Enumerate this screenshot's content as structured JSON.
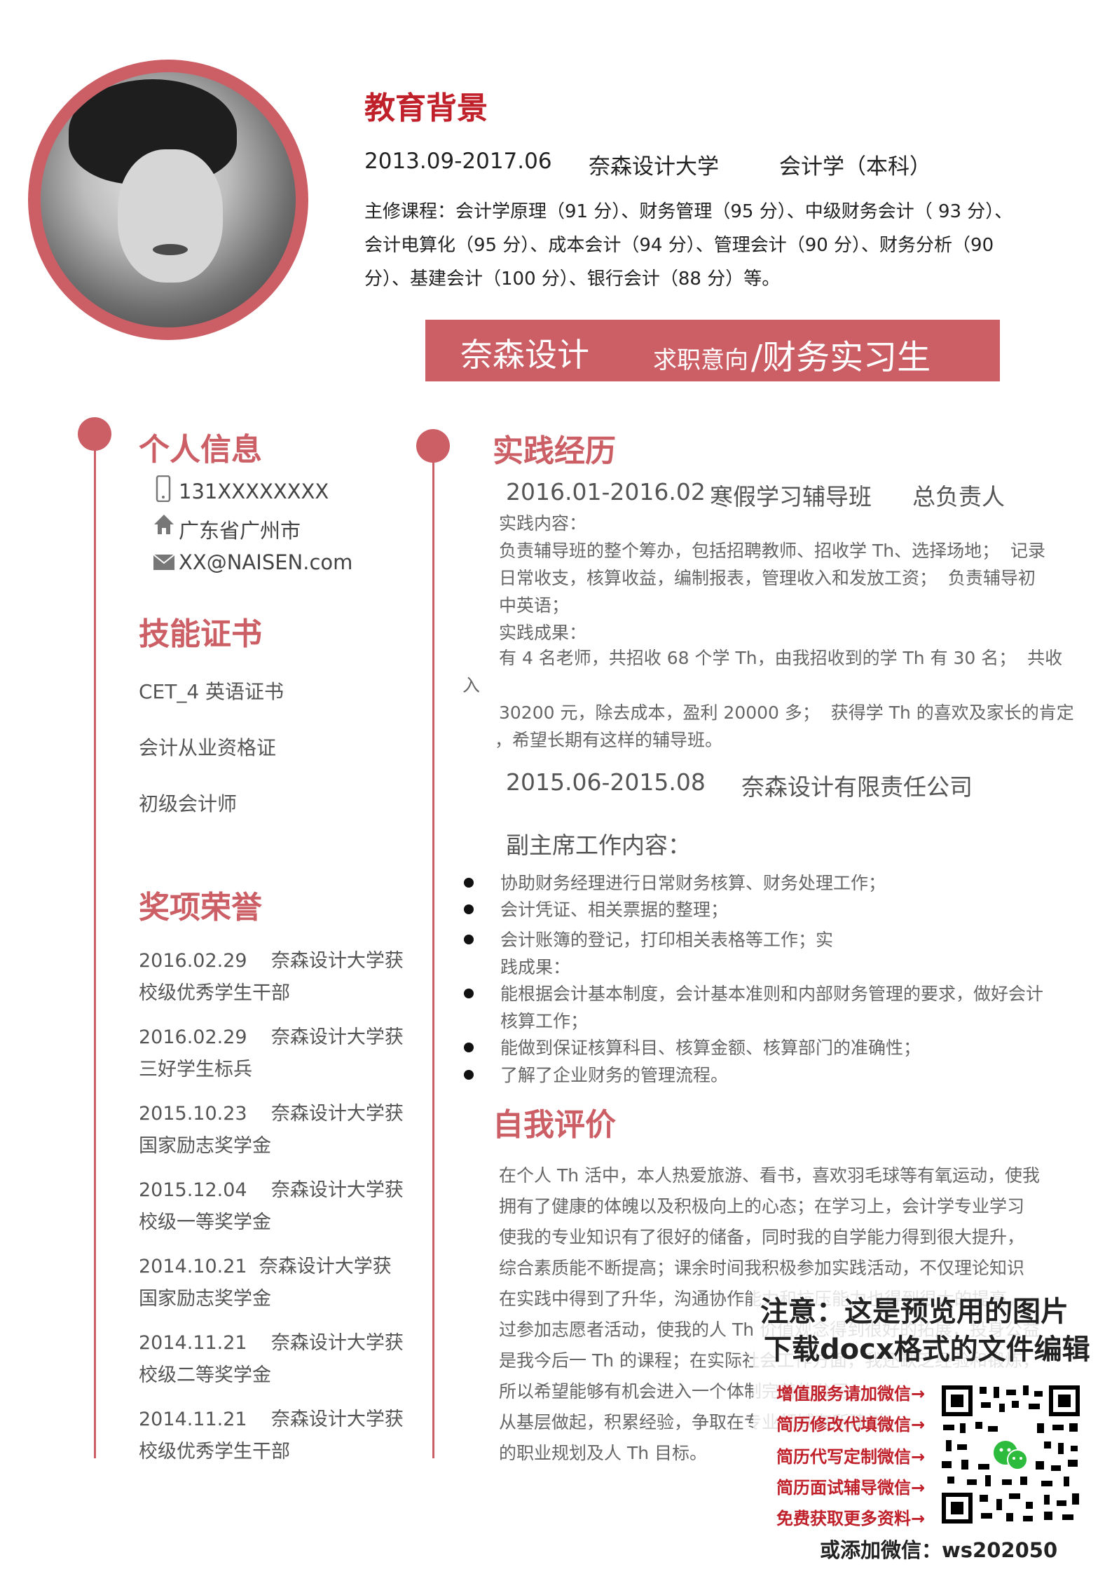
{
  "education": {
    "heading": "教育背景",
    "period": "2013.09-2017.06",
    "school": "奈森设计大学",
    "major": "会计学（本科）",
    "courses_lines": [
      "主修课程：会计学原理（91 分）、财务管理（95 分）、中级财务会计（ 93 分）、",
      "会计电算化（95 分）、成本会计（94 分）、管理会计（90 分）、财务分析（90",
      "分）、基建会计（100 分）、银行会计（88 分）等。"
    ]
  },
  "banner": {
    "name": "奈森设计",
    "intent_label": "求职意向",
    "intent_value": "/财务实习生"
  },
  "personal": {
    "heading": "个人信息",
    "phone": "131XXXXXXXX",
    "address": "广东省广州市",
    "email": "XX@NAISEN.com",
    "icons": [
      "phone-icon",
      "home-icon",
      "mail-icon"
    ]
  },
  "skills": {
    "heading": "技能证书",
    "items": [
      "CET_4 英语证书",
      "会计从业资格证",
      "初级会计师"
    ]
  },
  "awards": {
    "heading": "奖项荣誉",
    "items": [
      {
        "line1": "2016.02.29    奈森设计大学获",
        "line2": "校级优秀学生干部"
      },
      {
        "line1": "2016.02.29    奈森设计大学获",
        "line2": "三好学生标兵"
      },
      {
        "line1": "2015.10.23    奈森设计大学获",
        "line2": "国家励志奖学金"
      },
      {
        "line1": "2015.12.04    奈森设计大学获",
        "line2": "校级一等奖学金"
      },
      {
        "line1": "2014.10.21  奈森设计大学获",
        "line2": "国家励志奖学金"
      },
      {
        "line1": "2014.11.21    奈森设计大学获",
        "line2": "校级二等奖学金"
      },
      {
        "line1": "2014.11.21    奈森设计大学获",
        "line2": "校级优秀学生干部"
      }
    ]
  },
  "practice": {
    "heading": "实践经历",
    "job1": {
      "period": "2016.01-2016.02",
      "org": "寒假学习辅导班",
      "role": "总负责人",
      "content_label": "实践内容：",
      "content_lines": [
        "负责辅导班的整个筹办，包括招聘教师、招收学 Th、选择场地；  记录",
        "日常收支，核算收益，编制报表，管理收入和发放工资；  负责辅导初",
        "中英语；"
      ],
      "result_label": "实践成果：",
      "result_lines": [
        "有 4 名老师，共招收 68 个学 Th，由我招收到的学 Th 有 30 名；  共收",
        "入",
        "30200 元，除去成本，盈利 20000 多；  获得学 Th 的喜欢及家长的肯定",
        "，希望长期有这样的辅导班。"
      ]
    },
    "job2": {
      "period": "2015.06-2015.08",
      "org": "奈森设计有限责任公司",
      "content_label": "副主席工作内容：",
      "bullets": [
        [
          "协助财务经理进行日常财务核算、财务处理工作；"
        ],
        [
          "会计凭证、相关票据的整理；"
        ],
        [
          "会计账簿的登记，打印相关表格等工作；实",
          "践成果："
        ],
        [
          "能根据会计基本制度，会计基本准则和内部财务管理的要求，做好会计",
          "核算工作；"
        ],
        [
          "能做到保证核算科目、核算金额、核算部门的准确性；"
        ],
        [
          "了解了企业财务的管理流程。"
        ]
      ]
    }
  },
  "self_eval": {
    "heading": "自我评价",
    "lines": [
      "在个人 Th 活中，本人热爱旅游、看书，喜欢羽毛球等有氧运动，使我",
      "拥有了健康的体魄以及积极向上的心态；在学习上，会计学专业学习",
      "使我的专业知识有了很好的储备，同时我的自学能力得到很大提升，",
      "综合素质能不断提高；课余时间我积极参加实践活动，不仅理论知识",
      "在实践中得到了升华，沟通协作能力和抗压能力也得到很大的提高。",
      "过参加志愿者活动，使我的人 Th 价值观念得到很好的拓展，投身公益",
      "是我今后一 Th 的课程；在实际社会工作方面，我还缺乏经验和锻炼，",
      "所以希望能够有机会进入一个体制完善的公司，",
      "从基层做起，积累经验，争取在专业领域有所建树，",
      "的职业规划及人 Th 目标。"
    ]
  },
  "watermark": {
    "line1": "注意：这是预览用的图片",
    "line2": "下载docx格式的文件编辑",
    "items": [
      "增值服务请加微信→",
      "简历修改代填微信→",
      "简历代写定制微信→",
      "简历面试辅导微信→",
      "免费获取更多资料→"
    ],
    "footer": "或添加微信：ws202050"
  },
  "colors": {
    "accent": "#cc5f66",
    "heading_red": "#c0202a"
  }
}
